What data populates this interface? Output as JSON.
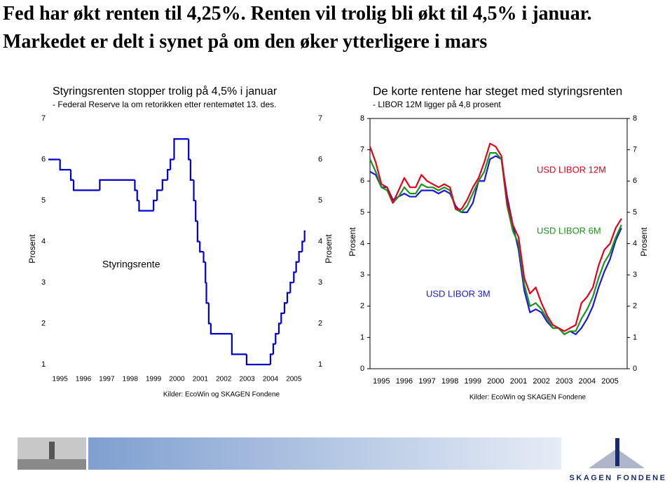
{
  "page_title": "Fed har økt renten til 4,25%. Renten vil trolig bli økt til 4,5% i januar. Markedet er delt i synet på om den øker ytterligere i mars",
  "footer": {
    "logo": "SKAGEN FONDENE"
  },
  "chart_data": [
    {
      "type": "step",
      "title": "Styringsrenten stopper trolig på 4,5% i januar",
      "subtitle": "- Federal Reserve la om retorikken etter rentemøtet 13. des.",
      "y_label": "Prosent",
      "source": "Kilder: EcoWin og SKAGEN Fondene",
      "x": [
        1995.0,
        1995.5,
        1995.96,
        1996.08,
        1997.2,
        1998.7,
        1998.8,
        1998.88,
        1999.5,
        1999.65,
        1999.88,
        2000.1,
        2000.22,
        2000.38,
        2001.0,
        2001.08,
        2001.22,
        2001.3,
        2001.38,
        2001.48,
        2001.64,
        2001.72,
        2001.76,
        2001.86,
        2001.95,
        2002.85,
        2003.48,
        2004.5,
        2004.62,
        2004.72,
        2004.86,
        2004.96,
        2005.1,
        2005.22,
        2005.35,
        2005.5,
        2005.6,
        2005.72,
        2005.86,
        2005.96,
        2006.0
      ],
      "series": [
        {
          "name": "Styringsrente",
          "color": "#0000cc",
          "values": [
            6.0,
            5.75,
            5.5,
            5.25,
            5.5,
            5.25,
            5.0,
            4.75,
            5.0,
            5.25,
            5.5,
            5.75,
            6.0,
            6.5,
            6.0,
            5.5,
            5.0,
            4.5,
            4.0,
            3.75,
            3.5,
            3.0,
            2.5,
            2.0,
            1.75,
            1.25,
            1.0,
            1.25,
            1.5,
            1.75,
            2.0,
            2.25,
            2.5,
            2.75,
            3.0,
            3.25,
            3.5,
            3.75,
            4.0,
            4.25,
            4.25
          ]
        }
      ],
      "xlim": [
        1995,
        2006
      ],
      "ylim": [
        1,
        7
      ],
      "yticks": [
        1,
        2,
        3,
        4,
        5,
        6,
        7
      ],
      "xticks": [
        {
          "value": 1995.5,
          "label": "1995"
        },
        {
          "value": 1996.5,
          "label": "1996"
        },
        {
          "value": 1997.5,
          "label": "1997"
        },
        {
          "value": 1998.5,
          "label": "1998"
        },
        {
          "value": 1999.5,
          "label": "1999"
        },
        {
          "value": 2000.5,
          "label": "2000"
        },
        {
          "value": 2001.5,
          "label": "2001"
        },
        {
          "value": 2002.5,
          "label": "2002"
        },
        {
          "value": 2003.5,
          "label": "2003"
        },
        {
          "value": 2004.5,
          "label": "2004"
        },
        {
          "value": 2005.5,
          "label": "2005"
        }
      ]
    },
    {
      "type": "line",
      "title": "De korte rentene har steget med styringsrenten",
      "subtitle": "- LIBOR 12M ligger på 4,8 prosent",
      "y_label": "Prosent",
      "source": "Kilder: EcoWin og SKAGEN Fondene",
      "x": [
        1995.0,
        1995.25,
        1995.5,
        1995.75,
        1996.0,
        1996.25,
        1996.5,
        1996.75,
        1997.0,
        1997.25,
        1997.5,
        1997.75,
        1998.0,
        1998.25,
        1998.5,
        1998.75,
        1999.0,
        1999.25,
        1999.5,
        1999.75,
        2000.0,
        2000.25,
        2000.5,
        2000.75,
        2001.0,
        2001.25,
        2001.5,
        2001.75,
        2002.0,
        2002.25,
        2002.5,
        2002.75,
        2003.0,
        2003.25,
        2003.5,
        2003.75,
        2004.0,
        2004.25,
        2004.5,
        2004.75,
        2005.0,
        2005.25,
        2005.5,
        2005.75,
        2006.0
      ],
      "series": [
        {
          "name": "USD LIBOR 3M",
          "color": "#1a1ad8",
          "values": [
            6.3,
            6.2,
            5.8,
            5.8,
            5.4,
            5.5,
            5.6,
            5.5,
            5.5,
            5.7,
            5.7,
            5.7,
            5.6,
            5.7,
            5.6,
            5.2,
            5.0,
            5.0,
            5.3,
            6.0,
            6.0,
            6.7,
            6.8,
            6.7,
            5.5,
            4.6,
            3.8,
            2.5,
            1.8,
            1.9,
            1.8,
            1.5,
            1.3,
            1.3,
            1.1,
            1.2,
            1.1,
            1.3,
            1.6,
            2.0,
            2.6,
            3.1,
            3.5,
            4.1,
            4.5
          ]
        },
        {
          "name": "USD LIBOR 6M",
          "color": "#1a961a",
          "values": [
            6.7,
            6.3,
            5.8,
            5.7,
            5.3,
            5.5,
            5.8,
            5.6,
            5.6,
            5.9,
            5.8,
            5.8,
            5.7,
            5.8,
            5.7,
            5.1,
            5.0,
            5.2,
            5.6,
            6.0,
            6.3,
            6.9,
            6.9,
            6.7,
            5.2,
            4.4,
            4.0,
            2.7,
            2.0,
            2.1,
            1.9,
            1.6,
            1.3,
            1.3,
            1.1,
            1.2,
            1.2,
            1.6,
            1.9,
            2.3,
            2.9,
            3.4,
            3.7,
            4.2,
            4.6
          ]
        },
        {
          "name": "USD LIBOR 12M",
          "color": "#e8001c",
          "values": [
            7.1,
            6.6,
            5.9,
            5.8,
            5.3,
            5.7,
            6.1,
            5.8,
            5.8,
            6.2,
            6.0,
            5.9,
            5.8,
            5.9,
            5.8,
            5.1,
            5.1,
            5.4,
            5.8,
            6.1,
            6.6,
            7.2,
            7.1,
            6.8,
            5.3,
            4.6,
            4.2,
            2.9,
            2.4,
            2.6,
            2.1,
            1.7,
            1.4,
            1.3,
            1.2,
            1.3,
            1.4,
            2.1,
            2.3,
            2.6,
            3.3,
            3.8,
            4.0,
            4.5,
            4.8
          ]
        }
      ],
      "xlim": [
        1995,
        2006.25
      ],
      "ylim": [
        0,
        8
      ],
      "yticks": [
        0,
        1,
        2,
        3,
        4,
        5,
        6,
        7,
        8
      ],
      "xticks": [
        {
          "value": 1995.5,
          "label": "1995"
        },
        {
          "value": 1996.5,
          "label": "1996"
        },
        {
          "value": 1997.5,
          "label": "1997"
        },
        {
          "value": 1998.5,
          "label": "1998"
        },
        {
          "value": 1999.5,
          "label": "1999"
        },
        {
          "value": 2000.5,
          "label": "2000"
        },
        {
          "value": 2001.5,
          "label": "2001"
        },
        {
          "value": 2002.5,
          "label": "2002"
        },
        {
          "value": 2003.5,
          "label": "2003"
        },
        {
          "value": 2004.5,
          "label": "2004"
        },
        {
          "value": 2005.5,
          "label": "2005"
        }
      ]
    }
  ]
}
